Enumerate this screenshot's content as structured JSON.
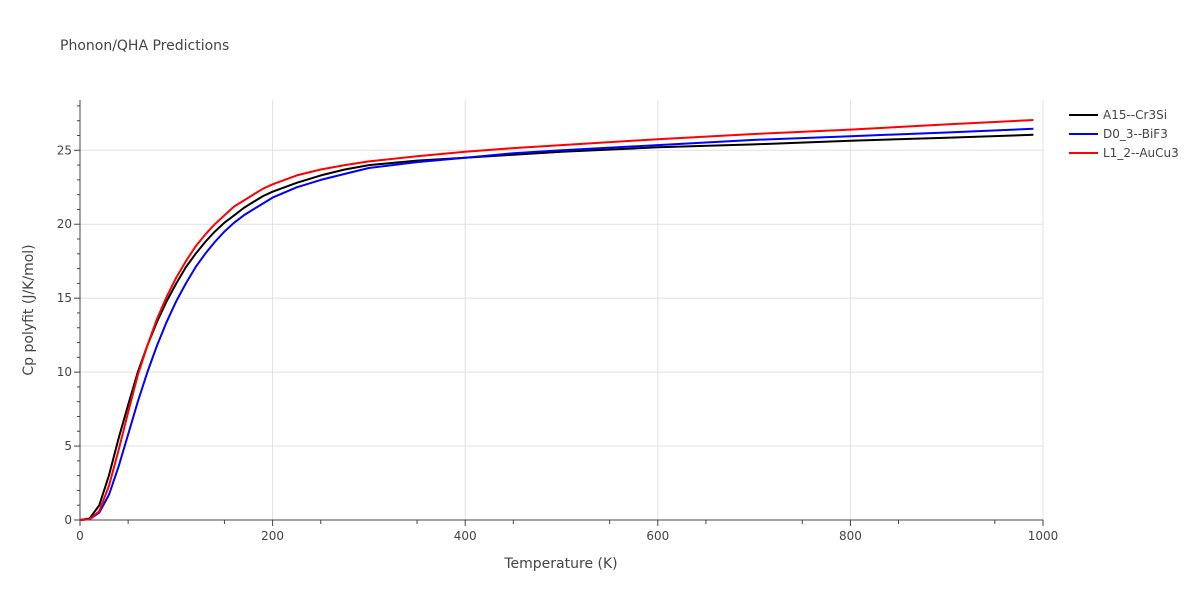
{
  "chart_data": {
    "type": "line",
    "title": "Phonon/QHA Predictions",
    "xlabel": "Temperature (K)",
    "ylabel": "Cp polyfit (J/K/mol)",
    "xlim": [
      0,
      1000
    ],
    "ylim": [
      0,
      28.4
    ],
    "x_ticks": [
      0,
      200,
      400,
      600,
      800,
      1000
    ],
    "y_ticks": [
      0,
      5,
      10,
      15,
      20,
      25
    ],
    "grid": true,
    "legend_position": "top-right",
    "series": [
      {
        "name": "A15--Cr3Si",
        "color": "#000000",
        "x": [
          0,
          10,
          20,
          30,
          40,
          50,
          60,
          70,
          80,
          90,
          100,
          110,
          120,
          130,
          140,
          150,
          160,
          170,
          180,
          190,
          200,
          225,
          250,
          275,
          300,
          350,
          400,
          450,
          500,
          600,
          700,
          800,
          900,
          990
        ],
        "y": [
          0,
          0.1,
          1.0,
          3.0,
          5.5,
          7.8,
          10.0,
          11.8,
          13.4,
          14.8,
          16.0,
          17.1,
          18.0,
          18.8,
          19.5,
          20.1,
          20.6,
          21.1,
          21.5,
          21.9,
          22.2,
          22.8,
          23.3,
          23.7,
          24.0,
          24.3,
          24.5,
          24.7,
          24.9,
          25.2,
          25.4,
          25.65,
          25.85,
          26.05
        ]
      },
      {
        "name": "D0_3--BiF3",
        "color": "#0000ff",
        "x": [
          0,
          10,
          20,
          30,
          40,
          50,
          60,
          70,
          80,
          90,
          100,
          110,
          120,
          130,
          140,
          150,
          160,
          170,
          180,
          190,
          200,
          225,
          250,
          275,
          300,
          350,
          400,
          450,
          500,
          600,
          700,
          800,
          900,
          990
        ],
        "y": [
          0,
          0.05,
          0.5,
          1.7,
          3.6,
          5.8,
          8.0,
          10.0,
          11.8,
          13.4,
          14.8,
          16.0,
          17.1,
          18.0,
          18.8,
          19.5,
          20.1,
          20.6,
          21.0,
          21.4,
          21.8,
          22.5,
          23.0,
          23.4,
          23.8,
          24.2,
          24.5,
          24.8,
          25.0,
          25.35,
          25.7,
          25.95,
          26.2,
          26.45
        ]
      },
      {
        "name": "L1_2--AuCu3",
        "color": "#ff0000",
        "x": [
          0,
          10,
          20,
          30,
          40,
          50,
          60,
          70,
          80,
          90,
          100,
          110,
          120,
          130,
          140,
          150,
          160,
          170,
          180,
          190,
          200,
          225,
          250,
          275,
          300,
          350,
          400,
          450,
          500,
          600,
          700,
          800,
          900,
          990
        ],
        "y": [
          0,
          0.05,
          0.6,
          2.3,
          4.7,
          7.3,
          9.8,
          11.8,
          13.6,
          15.1,
          16.4,
          17.5,
          18.5,
          19.3,
          20.0,
          20.6,
          21.2,
          21.6,
          22.0,
          22.4,
          22.7,
          23.3,
          23.7,
          24.0,
          24.25,
          24.6,
          24.9,
          25.15,
          25.35,
          25.75,
          26.1,
          26.4,
          26.75,
          27.05
        ]
      }
    ]
  }
}
